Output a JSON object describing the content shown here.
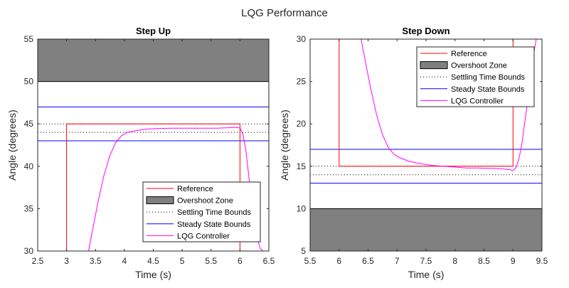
{
  "figure": {
    "title": "LQG Performance",
    "background": "#ffffff"
  },
  "legend_labels": {
    "reference": "Reference",
    "overshoot": "Overshoot Zone",
    "settling": "Settling Time Bounds",
    "steady": "Steady State Bounds",
    "lqg": "LQG Controller"
  },
  "colors": {
    "reference": "#ff0000",
    "overshoot": "#808080",
    "settling": "#000000",
    "steady": "#0000ff",
    "lqg": "#ff00ff"
  },
  "chart_data": [
    {
      "type": "line",
      "title": "Step Up",
      "xlabel": "Time (s)",
      "ylabel": "Angle (degrees)",
      "xlim": [
        2.5,
        6.5
      ],
      "ylim": [
        30,
        55
      ],
      "xticks": [
        2.5,
        3,
        3.5,
        4,
        4.5,
        5,
        5.5,
        6,
        6.5
      ],
      "xtick_labels": [
        "2.5",
        "3",
        "3.5",
        "4",
        "4.5",
        "5",
        "5.5",
        "6",
        "6.5"
      ],
      "yticks": [
        30,
        35,
        40,
        45,
        50,
        55
      ],
      "ytick_labels": [
        "30",
        "35",
        "40",
        "45",
        "50",
        "55"
      ],
      "legend_position": "bottom-right",
      "grid": false,
      "overshoot_zone": [
        50,
        55
      ],
      "settling_bounds": [
        44,
        45
      ],
      "steady_bounds": [
        43,
        47
      ],
      "series": [
        {
          "name": "Reference",
          "x": [
            2.5,
            3,
            3,
            6,
            6,
            6.5
          ],
          "y": [
            30,
            30,
            45,
            45,
            30,
            30
          ]
        },
        {
          "name": "LQG Controller",
          "x": [
            3.38,
            3.45,
            3.55,
            3.65,
            3.75,
            3.85,
            3.95,
            4.05,
            4.2,
            4.4,
            4.6,
            4.8,
            5.0,
            5.2,
            5.4,
            5.6,
            5.8,
            5.95,
            6.0,
            6.05,
            6.1,
            6.15,
            6.2,
            6.25,
            6.3,
            6.35,
            6.4
          ],
          "y": [
            30,
            32.5,
            36,
            39,
            41.3,
            42.8,
            43.6,
            44.0,
            44.2,
            44.4,
            44.45,
            44.5,
            44.5,
            44.5,
            44.5,
            44.5,
            44.55,
            44.6,
            44.5,
            43.8,
            42,
            39,
            36,
            33.5,
            31.5,
            30.3,
            30
          ]
        }
      ]
    },
    {
      "type": "line",
      "title": "Step Down",
      "xlabel": "Time (s)",
      "ylabel": "Angle (degrees)",
      "xlim": [
        5.5,
        9.5
      ],
      "ylim": [
        5,
        30
      ],
      "xticks": [
        5.5,
        6,
        6.5,
        7,
        7.5,
        8,
        8.5,
        9,
        9.5
      ],
      "xtick_labels": [
        "5.5",
        "6",
        "6.5",
        "7",
        "7.5",
        "8",
        "8.5",
        "9",
        "9.5"
      ],
      "yticks": [
        5,
        10,
        15,
        20,
        25,
        30
      ],
      "ytick_labels": [
        "5",
        "10",
        "15",
        "20",
        "25",
        "30"
      ],
      "legend_position": "top-right",
      "grid": false,
      "overshoot_zone": [
        5,
        10
      ],
      "settling_bounds": [
        14,
        15
      ],
      "steady_bounds": [
        13,
        17
      ],
      "series": [
        {
          "name": "Reference",
          "x": [
            5.5,
            6,
            6,
            9,
            9,
            9.5
          ],
          "y": [
            30,
            30,
            15,
            15,
            30,
            30
          ]
        },
        {
          "name": "LQG Controller",
          "x": [
            6.38,
            6.45,
            6.55,
            6.65,
            6.75,
            6.85,
            6.95,
            7.05,
            7.2,
            7.4,
            7.6,
            7.8,
            8.0,
            8.2,
            8.4,
            8.6,
            8.8,
            8.95,
            9.0,
            9.05,
            9.1,
            9.15,
            9.2,
            9.25,
            9.3,
            9.35,
            9.4
          ],
          "y": [
            30,
            27.5,
            24,
            21,
            18.7,
            17.2,
            16.4,
            16.0,
            15.6,
            15.3,
            15.1,
            15.0,
            14.9,
            14.8,
            14.8,
            14.75,
            14.7,
            14.6,
            14.5,
            14.8,
            15.8,
            17.5,
            20,
            22.5,
            25.5,
            28,
            30
          ]
        }
      ]
    }
  ]
}
